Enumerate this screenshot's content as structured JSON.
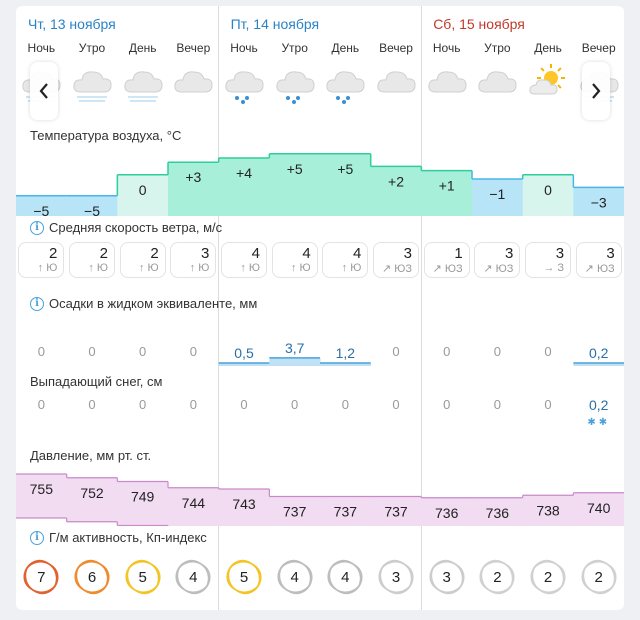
{
  "days": [
    {
      "label": "Чт, 13 ноября",
      "color": "#2a83c6"
    },
    {
      "label": "Пт, 14 ноября",
      "color": "#2a83c6"
    },
    {
      "label": "Сб, 15 ноября",
      "color": "#c0392b"
    }
  ],
  "times_of_day": [
    "Ночь",
    "Утро",
    "День",
    "Вечер",
    "Ночь",
    "Утро",
    "День",
    "Вечер",
    "Ночь",
    "Утро",
    "День",
    "Вечер"
  ],
  "weather_icons": [
    "cloud-snow-icon",
    "cloud-snow-icon",
    "cloud-snow-icon",
    "cloud-icon",
    "cloud-rain-icon",
    "cloud-rain-icon",
    "cloud-rain-icon",
    "cloud-icon",
    "cloud-icon",
    "cloud-icon",
    "partly-sunny-icon",
    "cloud-snow-icon"
  ],
  "nav": {
    "prev_icon": "chevron-left-icon",
    "next_icon": "chevron-right-icon"
  },
  "temperature": {
    "title": "Температура воздуха, °C",
    "values": [
      -5,
      -5,
      0,
      3,
      4,
      5,
      5,
      2,
      1,
      -1,
      0,
      -3
    ],
    "labels": [
      "−5",
      "−5",
      "0",
      "+3",
      "+4",
      "+5",
      "+5",
      "+2",
      "+1",
      "−1",
      "0",
      "−3"
    ],
    "colors": {
      "cold": "#b7e4f7",
      "zero": "#d7f5ec",
      "warm": "#a8efd9"
    }
  },
  "wind": {
    "title": "Средняя скорость ветра, м/с",
    "speeds": [
      "2",
      "2",
      "2",
      "3",
      "4",
      "4",
      "4",
      "3",
      "1",
      "3",
      "3",
      "3"
    ],
    "directions": [
      "↑ Ю",
      "↑ Ю",
      "↑ Ю",
      "↑ Ю",
      "↑ Ю",
      "↑ Ю",
      "↑ Ю",
      "↗ ЮЗ",
      "↗ ЮЗ",
      "↗ ЮЗ",
      "→ З",
      "↗ ЮЗ"
    ]
  },
  "precip": {
    "title": "Осадки в жидком эквиваленте, мм",
    "values": [
      "0",
      "0",
      "0",
      "0",
      "0,5",
      "3,7",
      "1,2",
      "0",
      "0",
      "0",
      "0",
      "0,2"
    ],
    "amounts": [
      0,
      0,
      0,
      0,
      0.5,
      3.7,
      1.2,
      0,
      0,
      0,
      0,
      0.2
    ]
  },
  "snow": {
    "title": "Выпадающий снег, см",
    "values": [
      "0",
      "0",
      "0",
      "0",
      "0",
      "0",
      "0",
      "0",
      "0",
      "0",
      "0",
      "0,2"
    ]
  },
  "pressure": {
    "title": "Давление, мм рт. ст.",
    "values": [
      755,
      752,
      749,
      744,
      743,
      737,
      737,
      737,
      736,
      736,
      738,
      740
    ],
    "labels": [
      "755",
      "752",
      "749",
      "744",
      "743",
      "737",
      "737",
      "737",
      "736",
      "736",
      "738",
      "740"
    ],
    "color": "#f1dcf1"
  },
  "kp": {
    "title": "Г/м активность, Кп-индекс",
    "values": [
      "7",
      "6",
      "5",
      "4",
      "5",
      "4",
      "4",
      "3",
      "3",
      "2",
      "2",
      "2"
    ],
    "colors": [
      "#e0622e",
      "#f08a2c",
      "#f3c425",
      "#bdbdbd",
      "#f3c425",
      "#bdbdbd",
      "#bdbdbd",
      "#cccccc",
      "#cccccc",
      "#d0d0d0",
      "#d0d0d0",
      "#d0d0d0"
    ]
  }
}
